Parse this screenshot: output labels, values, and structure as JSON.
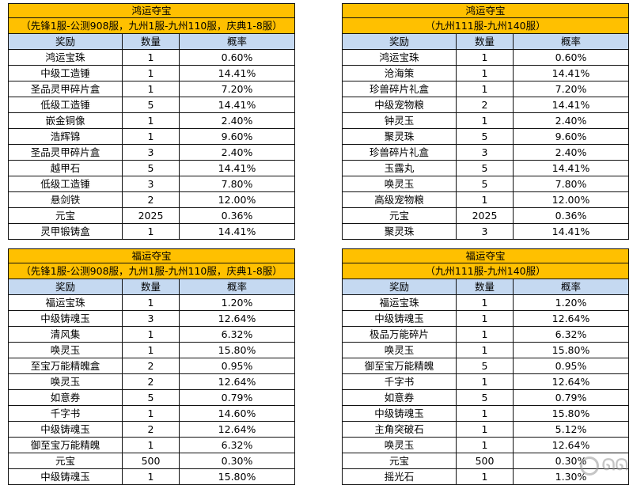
{
  "tables": [
    {
      "title": "鸿运夺宝",
      "subtitle": "（先锋1服-公测908服，九州1服-九州110服，庆典1-8服）",
      "headers": [
        "奖励",
        "数量",
        "概率"
      ],
      "rows": [
        [
          "鸿运宝珠",
          "1",
          "0.60%"
        ],
        [
          "中级工造锤",
          "1",
          "14.41%"
        ],
        [
          "圣品灵甲碎片盒",
          "1",
          "7.20%"
        ],
        [
          "低级工造锤",
          "5",
          "14.41%"
        ],
        [
          "嵌金铜像",
          "1",
          "2.40%"
        ],
        [
          "浩辉锦",
          "1",
          "9.60%"
        ],
        [
          "圣品灵甲碎片盒",
          "3",
          "2.40%"
        ],
        [
          "越甲石",
          "5",
          "14.41%"
        ],
        [
          "低级工造锤",
          "3",
          "7.80%"
        ],
        [
          "悬剑铁",
          "2",
          "12.00%"
        ],
        [
          "元宝",
          "2025",
          "0.36%"
        ],
        [
          "灵甲锻铸盒",
          "1",
          "14.41%"
        ]
      ]
    },
    {
      "title": "鸿运夺宝",
      "subtitle": "（九州111服-九州140服）",
      "headers": [
        "奖励",
        "数量",
        "概率"
      ],
      "rows": [
        [
          "鸿运宝珠",
          "1",
          "0.60%"
        ],
        [
          "沧海策",
          "1",
          "14.41%"
        ],
        [
          "珍兽碎片礼盒",
          "1",
          "7.20%"
        ],
        [
          "中级宠物粮",
          "2",
          "14.41%"
        ],
        [
          "钟灵玉",
          "1",
          "2.40%"
        ],
        [
          "聚灵珠",
          "5",
          "9.60%"
        ],
        [
          "珍兽碎片礼盒",
          "3",
          "2.40%"
        ],
        [
          "玉露丸",
          "5",
          "14.41%"
        ],
        [
          "唤灵玉",
          "5",
          "7.80%"
        ],
        [
          "高级宠物粮",
          "1",
          "12.00%"
        ],
        [
          "元宝",
          "2025",
          "0.36%"
        ],
        [
          "聚灵珠",
          "3",
          "14.41%"
        ]
      ]
    },
    {
      "title": "福运夺宝",
      "subtitle": "（先锋1服-公测908服，九州1服-九州110服，庆典1-8服）",
      "headers": [
        "奖励",
        "数量",
        "概率"
      ],
      "rows": [
        [
          "福运宝珠",
          "1",
          "1.20%"
        ],
        [
          "中级铸魂玉",
          "3",
          "12.64%"
        ],
        [
          "清风集",
          "1",
          "6.32%"
        ],
        [
          "唤灵玉",
          "1",
          "15.80%"
        ],
        [
          "至宝万能精魄盒",
          "2",
          "0.95%"
        ],
        [
          "唤灵玉",
          "2",
          "12.64%"
        ],
        [
          "如意券",
          "5",
          "0.79%"
        ],
        [
          "千字书",
          "1",
          "14.60%"
        ],
        [
          "中级铸魂玉",
          "2",
          "12.64%"
        ],
        [
          "御至宝万能精魄",
          "1",
          "6.32%"
        ],
        [
          "元宝",
          "500",
          "0.30%"
        ],
        [
          "中级铸魂玉",
          "1",
          "15.80%"
        ]
      ]
    },
    {
      "title": "福运夺宝",
      "subtitle": "（九州111服-九州140服）",
      "headers": [
        "奖励",
        "数量",
        "概率"
      ],
      "rows": [
        [
          "福运宝珠",
          "1",
          "1.20%"
        ],
        [
          "中级铸魂玉",
          "1",
          "12.64%"
        ],
        [
          "极品万能碎片",
          "1",
          "6.32%"
        ],
        [
          "唤灵玉",
          "1",
          "15.80%"
        ],
        [
          "御至宝万能精魄",
          "5",
          "0.95%"
        ],
        [
          "千字书",
          "1",
          "12.64%"
        ],
        [
          "如意券",
          "5",
          "0.79%"
        ],
        [
          "中级铸魂玉",
          "1",
          "15.80%"
        ],
        [
          "主角突破石",
          "1",
          "5.12%"
        ],
        [
          "唤灵玉",
          "1",
          "12.64%"
        ],
        [
          "元宝",
          "500",
          "0.30%"
        ],
        [
          "摇光石",
          "1",
          "1.30%"
        ]
      ]
    }
  ]
}
